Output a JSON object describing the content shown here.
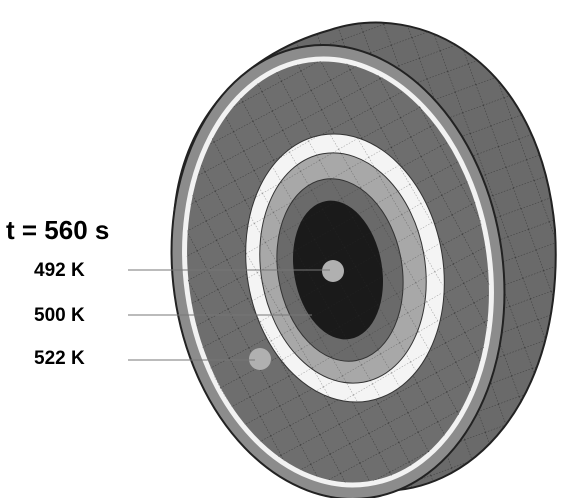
{
  "time_label": "t = 560 s",
  "labels": [
    "492 K",
    "500 K",
    "522 K"
  ]
}
